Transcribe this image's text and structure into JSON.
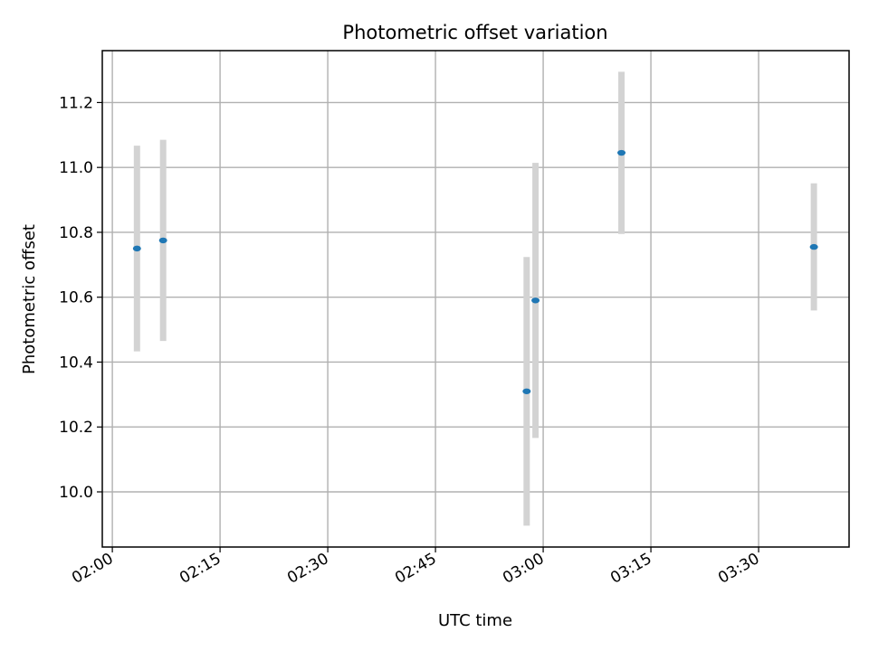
{
  "chart_data": {
    "type": "scatter",
    "title": "Photometric offset variation",
    "xlabel": "UTC time",
    "ylabel": "Photometric offset",
    "x_ticks": [
      "02:00",
      "02:15",
      "02:30",
      "02:45",
      "03:00",
      "03:15",
      "03:30"
    ],
    "x_tick_minutes": [
      0,
      15,
      30,
      45,
      60,
      75,
      90
    ],
    "xlim_minutes": [
      -1.4,
      102.6
    ],
    "y_ticks": [
      "10.0",
      "10.2",
      "10.4",
      "10.6",
      "10.8",
      "11.0",
      "11.2"
    ],
    "y_tick_values": [
      10.0,
      10.2,
      10.4,
      10.6,
      10.8,
      11.0,
      11.2
    ],
    "ylim": [
      9.83,
      11.36
    ],
    "grid": true,
    "marker_color": "#1f77b4",
    "errorbar_color": "#d3d3d3",
    "points": [
      {
        "time": "02:03:26",
        "minutes": 3.43,
        "y": 10.75,
        "err": 0.317
      },
      {
        "time": "02:07:04",
        "minutes": 7.07,
        "y": 10.775,
        "err": 0.31
      },
      {
        "time": "02:57:42",
        "minutes": 57.7,
        "y": 10.31,
        "err": 0.414
      },
      {
        "time": "02:58:56",
        "minutes": 58.93,
        "y": 10.59,
        "err": 0.424
      },
      {
        "time": "03:10:54",
        "minutes": 70.9,
        "y": 11.045,
        "err": 0.25
      },
      {
        "time": "03:37:42",
        "minutes": 97.7,
        "y": 10.755,
        "err": 0.196
      }
    ]
  }
}
